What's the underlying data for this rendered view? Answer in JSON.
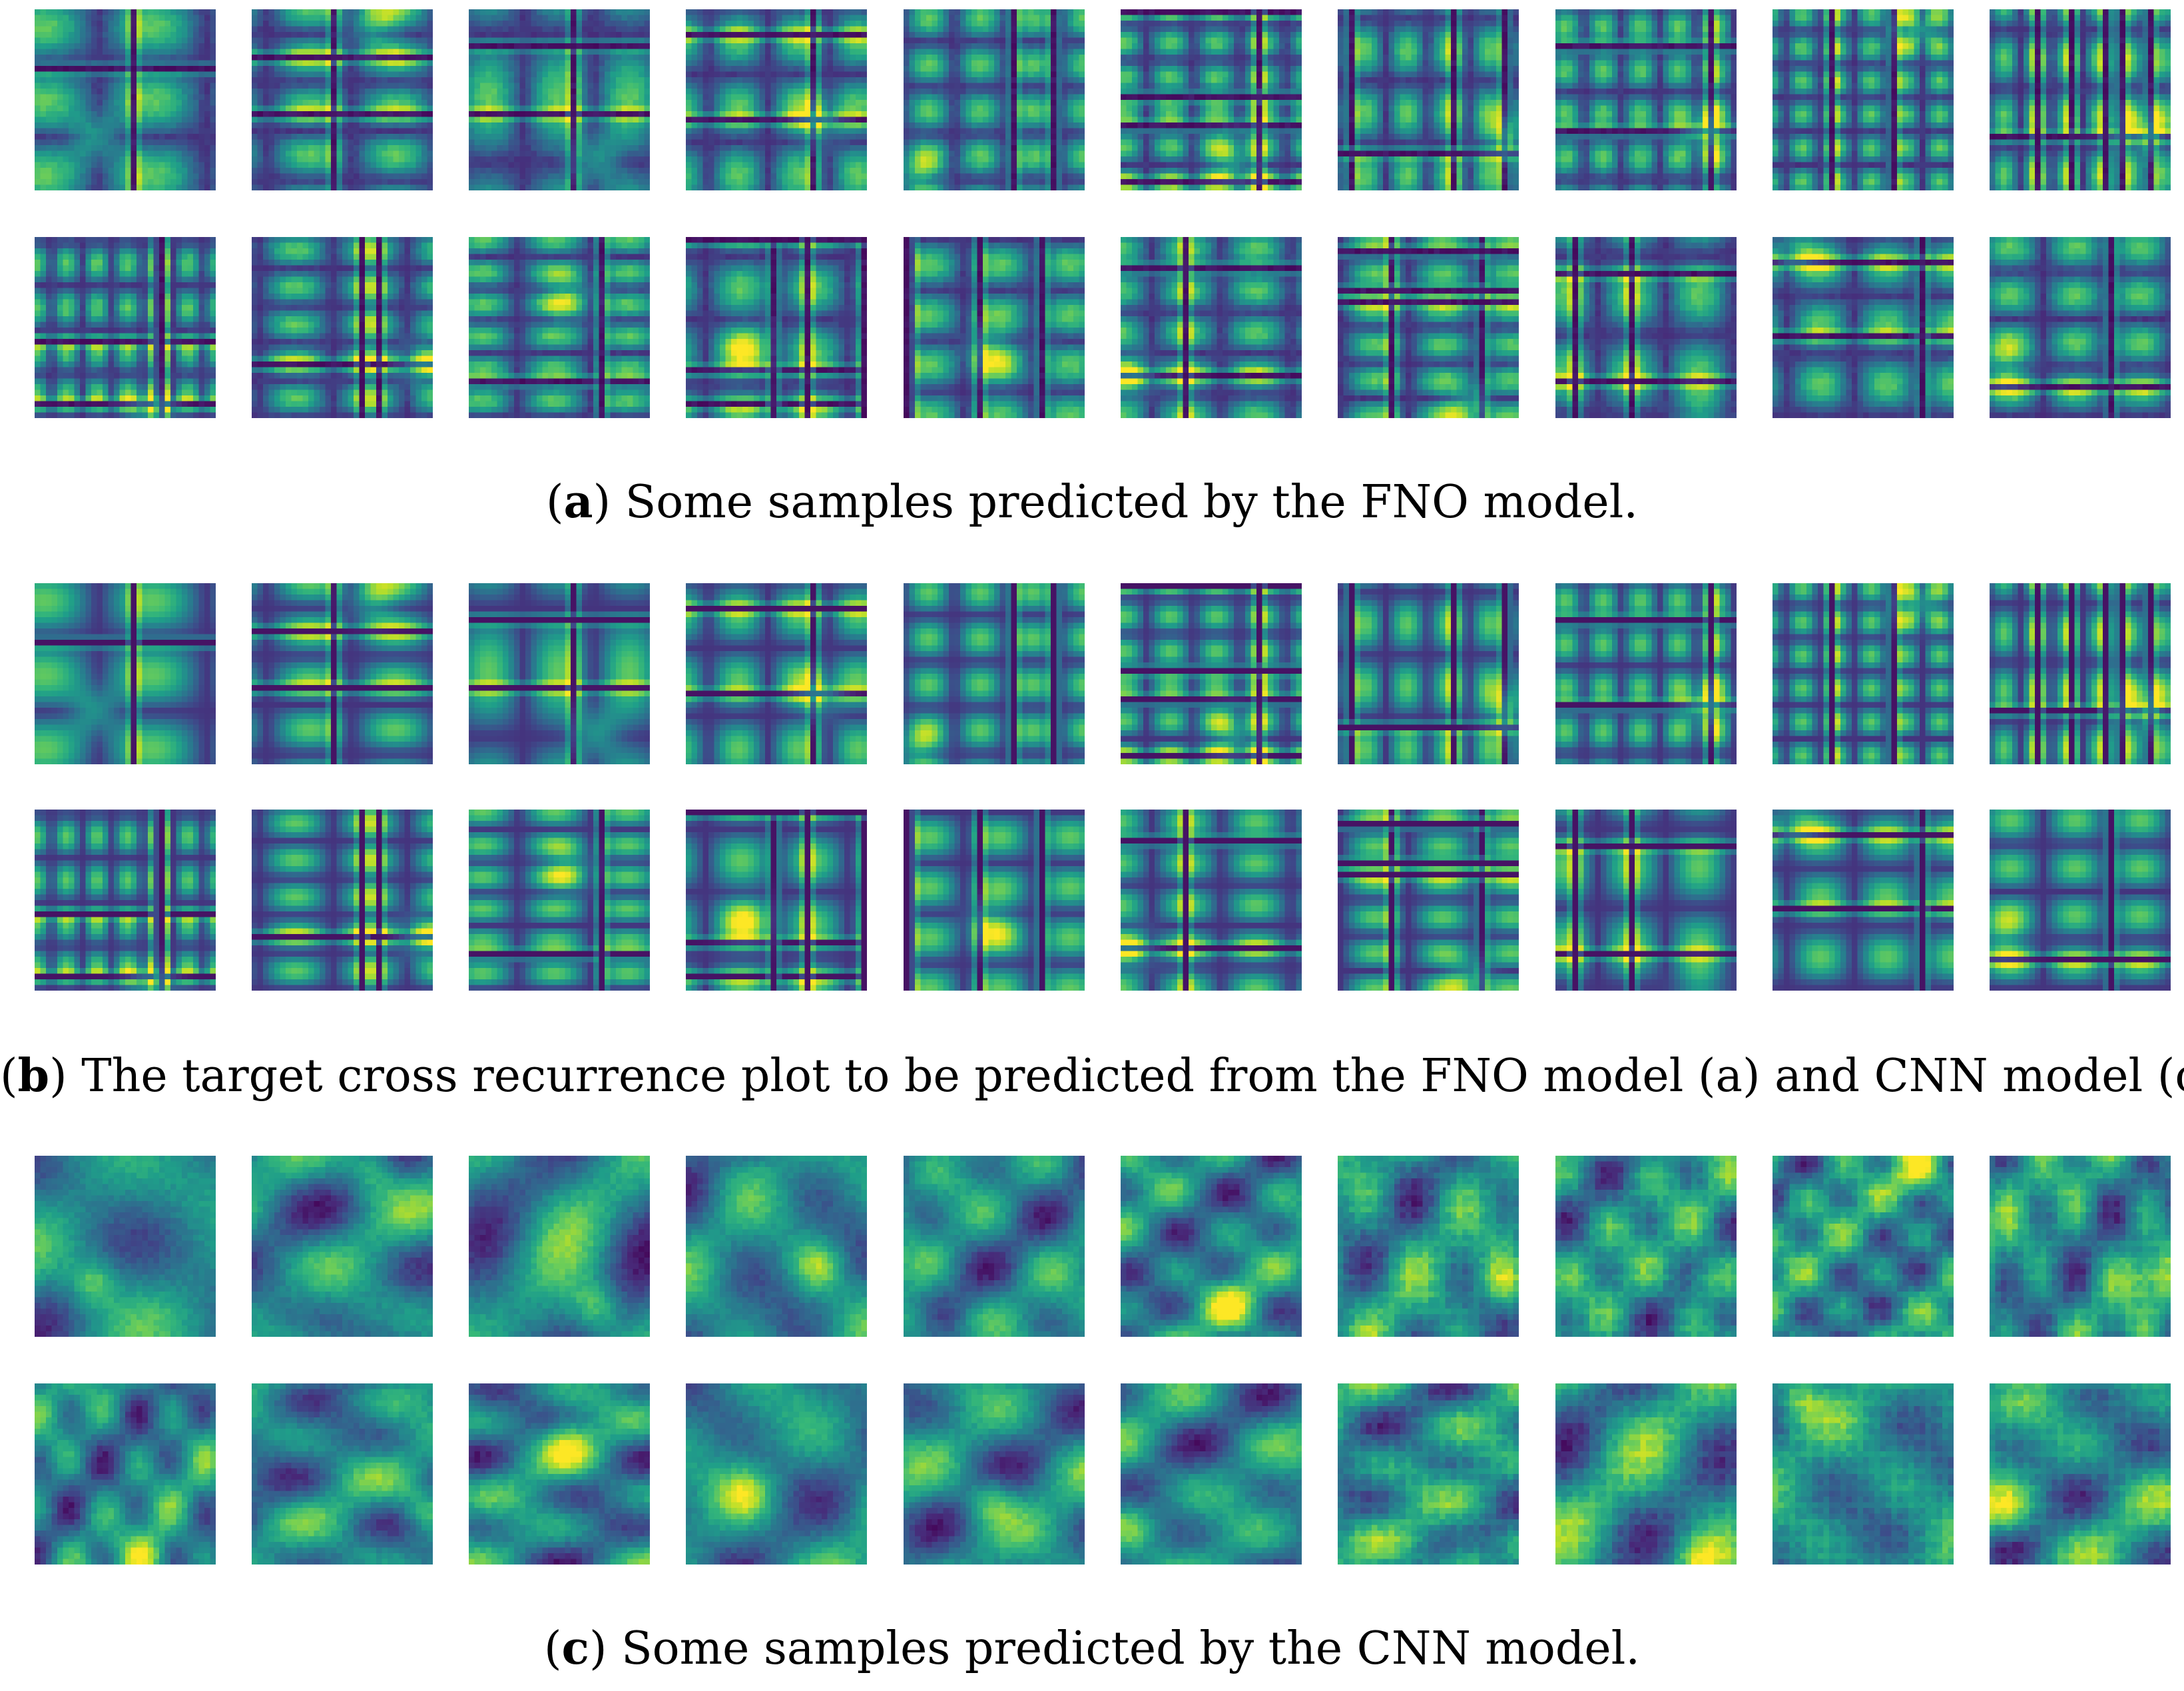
{
  "figure": {
    "colormap": "viridis",
    "colormap_stops": [
      "#440154",
      "#482878",
      "#3e4989",
      "#31688e",
      "#26828e",
      "#1f9e89",
      "#35b779",
      "#6ece58",
      "#b5de2b",
      "#fde725"
    ],
    "panels": [
      {
        "id": "a",
        "label": "a",
        "caption_open": "(",
        "caption_close": ")",
        "caption_text": " Some samples predicted by the FNO model.",
        "rows": 2,
        "cols": 10
      },
      {
        "id": "b",
        "label": "b",
        "caption_open": "(",
        "caption_close": ")",
        "caption_text": " The target cross recurrence plot to be predicted from the FNO model (a) and CNN model (c).",
        "rows": 2,
        "cols": 10
      },
      {
        "id": "c",
        "label": "c",
        "caption_open": "(",
        "caption_close": ")",
        "caption_text": " Some samples predicted by the CNN model.",
        "rows": 2,
        "cols": 10
      }
    ]
  }
}
